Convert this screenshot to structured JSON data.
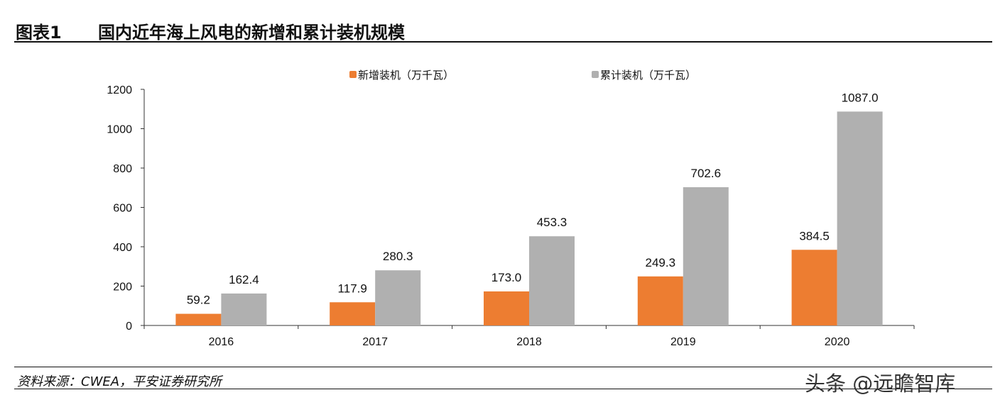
{
  "header": {
    "figure_no": "图表1",
    "title": "国内近年海上风电的新增和累计装机规模"
  },
  "footer": {
    "source": "资料来源：CWEA，平安证券研究所",
    "watermark": "头条 @远瞻智库"
  },
  "colors": {
    "new": "#ED7D31",
    "cumulative": "#B0B0B0"
  },
  "chart_data": {
    "type": "bar",
    "title": "国内近年海上风电的新增和累计装机规模",
    "categories": [
      "2016",
      "2017",
      "2018",
      "2019",
      "2020"
    ],
    "series": [
      {
        "name": "新增装机（万千瓦）",
        "values": [
          59.2,
          117.9,
          173.0,
          249.3,
          384.5
        ]
      },
      {
        "name": "累计装机（万千瓦）",
        "values": [
          162.4,
          280.3,
          453.3,
          702.6,
          1087.0
        ]
      }
    ],
    "ylim": [
      0,
      1200
    ],
    "yticks": [
      0,
      200,
      400,
      600,
      800,
      1000,
      1200
    ],
    "legend_position": "top-center",
    "grid": false,
    "xlabel": "",
    "ylabel": ""
  }
}
